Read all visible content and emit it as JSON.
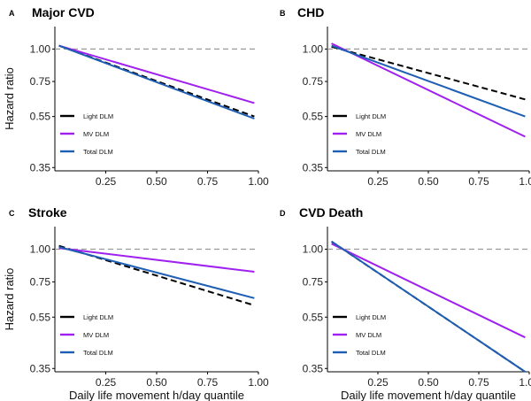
{
  "chart_data": [
    {
      "type": "line",
      "letter": "A",
      "title": "Major CVD",
      "xlabel": "",
      "ylabel": "Hazard ratio",
      "xlim": [
        0,
        1
      ],
      "ylim": [
        0.34,
        1.22
      ],
      "yscale": "log",
      "reference_line": 1.0,
      "xticks": [
        0.25,
        0.5,
        0.75,
        1.0
      ],
      "xtick_labels": [
        "0.25",
        "0.50",
        "0.75",
        "1.00"
      ],
      "yticks": [
        0.35,
        0.55,
        0.75,
        1.0
      ],
      "ytick_labels": [
        "0.35",
        "0.55",
        "0.75",
        "1.00"
      ],
      "legend_position": "bottom-left",
      "series": [
        {
          "name": "Light DLM",
          "color": "#000000",
          "dash": "dashed",
          "x": [
            0.02,
            0.98
          ],
          "y": [
            1.03,
            0.55
          ]
        },
        {
          "name": "MV DLM",
          "color": "#a020f0",
          "dash": "solid",
          "x": [
            0.02,
            0.98
          ],
          "y": [
            1.03,
            0.62
          ]
        },
        {
          "name": "Total DLM",
          "color": "#1e5fb4",
          "dash": "solid",
          "x": [
            0.02,
            0.98
          ],
          "y": [
            1.03,
            0.54
          ]
        }
      ]
    },
    {
      "type": "line",
      "letter": "B",
      "title": "CHD",
      "xlabel": "",
      "ylabel": "",
      "xlim": [
        0,
        1
      ],
      "ylim": [
        0.34,
        1.22
      ],
      "yscale": "log",
      "reference_line": 1.0,
      "xticks": [
        0.25,
        0.5,
        0.75,
        1.0
      ],
      "xtick_labels": [
        "0.25",
        "0.50",
        "0.75",
        "1.00"
      ],
      "yticks": [
        0.35,
        0.55,
        0.75,
        1.0
      ],
      "ytick_labels": [
        "0.35",
        "0.55",
        "0.75",
        "1.00"
      ],
      "legend_position": "bottom-left",
      "series": [
        {
          "name": "Light DLM",
          "color": "#000000",
          "dash": "dashed",
          "x": [
            0.02,
            0.98
          ],
          "y": [
            1.02,
            0.64
          ]
        },
        {
          "name": "MV DLM",
          "color": "#a020f0",
          "dash": "solid",
          "x": [
            0.02,
            0.98
          ],
          "y": [
            1.05,
            0.46
          ]
        },
        {
          "name": "Total DLM",
          "color": "#1e5fb4",
          "dash": "solid",
          "x": [
            0.02,
            0.98
          ],
          "y": [
            1.03,
            0.55
          ]
        }
      ]
    },
    {
      "type": "line",
      "letter": "C",
      "title": "Stroke",
      "xlabel": "Daily life movement h/day quantile",
      "ylabel": "Hazard ratio",
      "xlim": [
        0,
        1
      ],
      "ylim": [
        0.34,
        1.22
      ],
      "yscale": "log",
      "reference_line": 1.0,
      "xticks": [
        0.25,
        0.5,
        0.75,
        1.0
      ],
      "xtick_labels": [
        "0.25",
        "0.50",
        "0.75",
        "1.00"
      ],
      "yticks": [
        0.35,
        0.55,
        0.75,
        1.0
      ],
      "ytick_labels": [
        "0.35",
        "0.55",
        "0.75",
        "1.00"
      ],
      "legend_position": "bottom-left",
      "series": [
        {
          "name": "Light DLM",
          "color": "#000000",
          "dash": "dashed",
          "x": [
            0.02,
            0.98
          ],
          "y": [
            1.03,
            0.61
          ]
        },
        {
          "name": "MV DLM",
          "color": "#a020f0",
          "dash": "solid",
          "x": [
            0.02,
            0.98
          ],
          "y": [
            1.01,
            0.82
          ]
        },
        {
          "name": "Total DLM",
          "color": "#1e5fb4",
          "dash": "solid",
          "x": [
            0.02,
            0.98
          ],
          "y": [
            1.02,
            0.65
          ]
        }
      ]
    },
    {
      "type": "line",
      "letter": "D",
      "title": "CVD Death",
      "xlabel": "Daily life movement h/day quantile",
      "ylabel": "",
      "xlim": [
        0,
        1
      ],
      "ylim": [
        0.34,
        1.22
      ],
      "yscale": "log",
      "reference_line": 1.0,
      "xticks": [
        0.25,
        0.5,
        0.75,
        1.0
      ],
      "xtick_labels": [
        "0.25",
        "0.50",
        "0.75",
        "1.00"
      ],
      "yticks": [
        0.35,
        0.55,
        0.75,
        1.0
      ],
      "ytick_labels": [
        "0.35",
        "0.55",
        "0.75",
        "1.00"
      ],
      "legend_position": "bottom-left",
      "series": [
        {
          "name": "Light DLM",
          "color": "#000000",
          "dash": "dashed",
          "x": [
            0.02,
            0.98
          ],
          "y": [
            1.07,
            0.34
          ]
        },
        {
          "name": "MV DLM",
          "color": "#a020f0",
          "dash": "solid",
          "x": [
            0.02,
            0.98
          ],
          "y": [
            1.05,
            0.46
          ]
        },
        {
          "name": "Total DLM",
          "color": "#1e5fb4",
          "dash": "solid",
          "x": [
            0.02,
            0.98
          ],
          "y": [
            1.07,
            0.34
          ]
        }
      ]
    }
  ]
}
